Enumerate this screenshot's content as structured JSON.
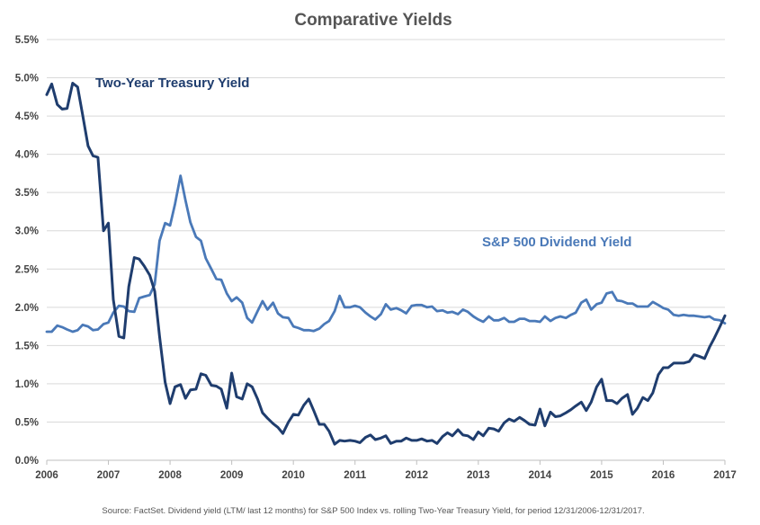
{
  "chart_data": {
    "type": "line",
    "title": "Comparative Yields",
    "xlabel": "",
    "ylabel": "",
    "x_ticks": [
      "2006",
      "2007",
      "2008",
      "2009",
      "2010",
      "2011",
      "2012",
      "2013",
      "2014",
      "2015",
      "2016",
      "2017"
    ],
    "y_ticks": [
      "0.0%",
      "0.5%",
      "1.0%",
      "1.5%",
      "2.0%",
      "2.5%",
      "3.0%",
      "3.5%",
      "4.0%",
      "4.5%",
      "5.0%",
      "5.5%"
    ],
    "xlim": [
      2006,
      2017
    ],
    "ylim": [
      0,
      5.5
    ],
    "grid": true,
    "legend": "inline labels",
    "series": [
      {
        "name": "Two-Year Treasury Yield",
        "color": "#1f3d6e",
        "x": [
          2006.0,
          2006.08,
          2006.17,
          2006.25,
          2006.33,
          2006.42,
          2006.5,
          2006.58,
          2006.67,
          2006.75,
          2006.83,
          2006.92,
          2007.0,
          2007.08,
          2007.17,
          2007.25,
          2007.33,
          2007.42,
          2007.5,
          2007.58,
          2007.67,
          2007.75,
          2007.83,
          2007.92,
          2008.0,
          2008.08,
          2008.17,
          2008.25,
          2008.33,
          2008.42,
          2008.5,
          2008.58,
          2008.67,
          2008.75,
          2008.83,
          2008.92,
          2009.0,
          2009.08,
          2009.17,
          2009.25,
          2009.33,
          2009.42,
          2009.5,
          2009.58,
          2009.67,
          2009.75,
          2009.83,
          2009.92,
          2010.0,
          2010.08,
          2010.17,
          2010.25,
          2010.33,
          2010.42,
          2010.5,
          2010.58,
          2010.67,
          2010.75,
          2010.83,
          2010.92,
          2011.0,
          2011.08,
          2011.17,
          2011.25,
          2011.33,
          2011.42,
          2011.5,
          2011.58,
          2011.67,
          2011.75,
          2011.83,
          2011.92,
          2012.0,
          2012.08,
          2012.17,
          2012.25,
          2012.33,
          2012.42,
          2012.5,
          2012.58,
          2012.67,
          2012.75,
          2012.83,
          2012.92,
          2013.0,
          2013.08,
          2013.17,
          2013.25,
          2013.33,
          2013.42,
          2013.5,
          2013.58,
          2013.67,
          2013.75,
          2013.83,
          2013.92,
          2014.0,
          2014.08,
          2014.17,
          2014.25,
          2014.33,
          2014.42,
          2014.5,
          2014.58,
          2014.67,
          2014.75,
          2014.83,
          2014.92,
          2015.0,
          2015.08,
          2015.17,
          2015.25,
          2015.33,
          2015.42,
          2015.5,
          2015.58,
          2015.67,
          2015.75,
          2015.83,
          2015.92,
          2016.0,
          2016.08,
          2016.17,
          2016.25,
          2016.33,
          2016.42,
          2016.5,
          2016.58,
          2016.67,
          2016.75,
          2016.83,
          2016.92,
          2017.0
        ],
        "values": [
          4.78,
          4.92,
          4.65,
          4.59,
          4.6,
          4.93,
          4.88,
          4.52,
          4.11,
          3.98,
          3.96,
          3.0,
          3.1,
          2.1,
          1.62,
          1.6,
          2.27,
          2.65,
          2.63,
          2.54,
          2.42,
          2.21,
          1.62,
          1.02,
          0.74,
          0.96,
          0.99,
          0.81,
          0.92,
          0.93,
          1.13,
          1.11,
          0.98,
          0.97,
          0.93,
          0.68,
          1.14,
          0.83,
          0.8,
          1.0,
          0.96,
          0.8,
          0.62,
          0.55,
          0.48,
          0.43,
          0.35,
          0.5,
          0.6,
          0.59,
          0.72,
          0.8,
          0.65,
          0.47,
          0.47,
          0.38,
          0.21,
          0.26,
          0.25,
          0.26,
          0.25,
          0.23,
          0.3,
          0.33,
          0.27,
          0.29,
          0.32,
          0.22,
          0.25,
          0.25,
          0.29,
          0.26,
          0.26,
          0.28,
          0.25,
          0.26,
          0.22,
          0.31,
          0.36,
          0.32,
          0.4,
          0.33,
          0.32,
          0.27,
          0.37,
          0.32,
          0.42,
          0.41,
          0.38,
          0.49,
          0.54,
          0.51,
          0.56,
          0.52,
          0.47,
          0.46,
          0.67,
          0.45,
          0.63,
          0.57,
          0.58,
          0.62,
          0.66,
          0.71,
          0.76,
          0.65,
          0.76,
          0.96,
          1.06,
          0.78,
          0.78,
          0.74,
          0.81,
          0.86,
          0.6,
          0.68,
          0.82,
          0.78,
          0.88,
          1.12,
          1.21,
          1.21,
          1.27,
          1.27,
          1.27,
          1.29,
          1.38,
          1.36,
          1.33,
          1.48,
          1.6,
          1.75,
          1.89
        ]
      },
      {
        "name": "S&P 500 Dividend Yield",
        "color": "#4a79b8",
        "x": [
          2006.0,
          2006.08,
          2006.17,
          2006.25,
          2006.33,
          2006.42,
          2006.5,
          2006.58,
          2006.67,
          2006.75,
          2006.83,
          2006.92,
          2007.0,
          2007.08,
          2007.17,
          2007.25,
          2007.33,
          2007.42,
          2007.5,
          2007.58,
          2007.67,
          2007.75,
          2007.83,
          2007.92,
          2008.0,
          2008.08,
          2008.17,
          2008.25,
          2008.33,
          2008.42,
          2008.5,
          2008.58,
          2008.67,
          2008.75,
          2008.83,
          2008.92,
          2009.0,
          2009.08,
          2009.17,
          2009.25,
          2009.33,
          2009.42,
          2009.5,
          2009.58,
          2009.67,
          2009.75,
          2009.83,
          2009.92,
          2010.0,
          2010.08,
          2010.17,
          2010.25,
          2010.33,
          2010.42,
          2010.5,
          2010.58,
          2010.67,
          2010.75,
          2010.83,
          2010.92,
          2011.0,
          2011.08,
          2011.17,
          2011.25,
          2011.33,
          2011.42,
          2011.5,
          2011.58,
          2011.67,
          2011.75,
          2011.83,
          2011.92,
          2012.0,
          2012.08,
          2012.17,
          2012.25,
          2012.33,
          2012.42,
          2012.5,
          2012.58,
          2012.67,
          2012.75,
          2012.83,
          2012.92,
          2013.0,
          2013.08,
          2013.17,
          2013.25,
          2013.33,
          2013.42,
          2013.5,
          2013.58,
          2013.67,
          2013.75,
          2013.83,
          2013.92,
          2014.0,
          2014.08,
          2014.17,
          2014.25,
          2014.33,
          2014.42,
          2014.5,
          2014.58,
          2014.67,
          2014.75,
          2014.83,
          2014.92,
          2015.0,
          2015.08,
          2015.17,
          2015.25,
          2015.33,
          2015.42,
          2015.5,
          2015.58,
          2015.67,
          2015.75,
          2015.83,
          2015.92,
          2016.0,
          2016.08,
          2016.17,
          2016.25,
          2016.33,
          2016.42,
          2016.5,
          2016.58,
          2016.67,
          2016.75,
          2016.83,
          2016.92,
          2017.0
        ],
        "values": [
          1.68,
          1.68,
          1.76,
          1.74,
          1.71,
          1.68,
          1.7,
          1.77,
          1.75,
          1.7,
          1.71,
          1.78,
          1.8,
          1.93,
          2.02,
          2.01,
          1.95,
          1.94,
          2.12,
          2.14,
          2.16,
          2.3,
          2.87,
          3.1,
          3.07,
          3.35,
          3.72,
          3.4,
          3.11,
          2.92,
          2.87,
          2.64,
          2.5,
          2.37,
          2.36,
          2.18,
          2.08,
          2.13,
          2.06,
          1.86,
          1.8,
          1.95,
          2.08,
          1.97,
          2.06,
          1.92,
          1.87,
          1.86,
          1.75,
          1.73,
          1.7,
          1.7,
          1.69,
          1.72,
          1.78,
          1.82,
          1.95,
          2.15,
          2.0,
          2.0,
          2.02,
          2.0,
          1.93,
          1.88,
          1.84,
          1.91,
          2.04,
          1.97,
          1.99,
          1.96,
          1.92,
          2.02,
          2.03,
          2.03,
          2.0,
          2.01,
          1.95,
          1.96,
          1.93,
          1.94,
          1.91,
          1.97,
          1.94,
          1.88,
          1.84,
          1.81,
          1.88,
          1.83,
          1.83,
          1.86,
          1.81,
          1.81,
          1.85,
          1.85,
          1.82,
          1.82,
          1.81,
          1.88,
          1.82,
          1.86,
          1.88,
          1.86,
          1.9,
          1.93,
          2.06,
          2.1,
          1.97,
          2.04,
          2.06,
          2.18,
          2.2,
          2.09,
          2.08,
          2.05,
          2.05,
          2.01,
          2.01,
          2.01,
          2.07,
          2.03,
          1.99,
          1.97,
          1.9,
          1.89,
          1.9,
          1.89,
          1.89,
          1.88,
          1.87,
          1.88,
          1.84,
          1.83,
          1.79
        ]
      }
    ],
    "annotations": [
      {
        "text": "Two-Year Treasury Yield",
        "series": 0
      },
      {
        "text": "S&P 500 Dividend Yield",
        "series": 1
      }
    ],
    "source_note": "Source: FactSet. Dividend yield (LTM/ last 12 months) for S&P 500 Index vs. rolling Two-Year Treasury Yield, for period 12/31/2006-12/31/2017."
  }
}
